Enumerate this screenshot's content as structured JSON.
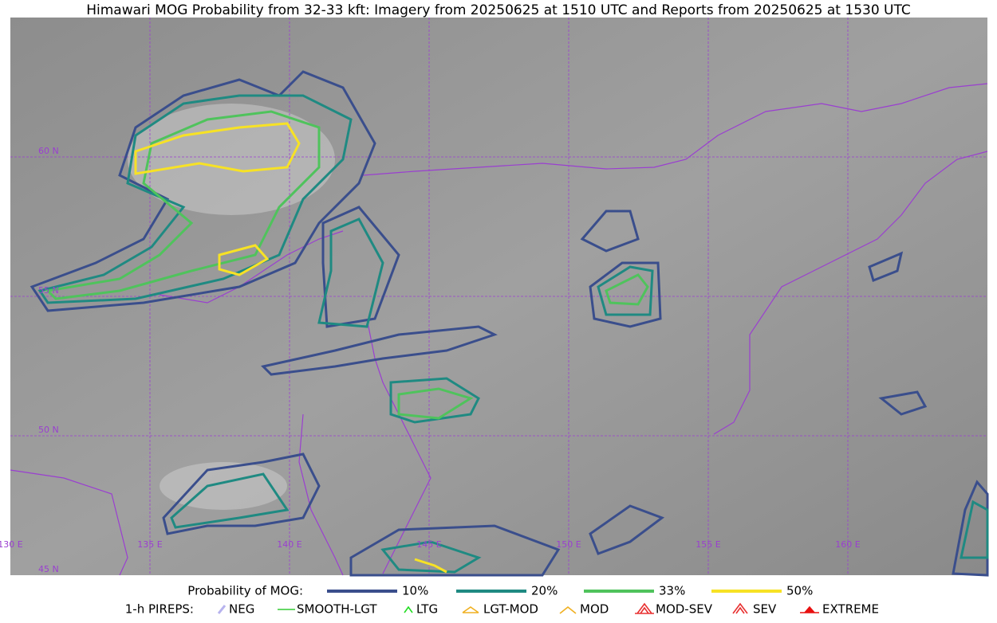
{
  "title": "Himawari MOG Probability from 32-33 kft: Imagery from 20250625 at 1510 UTC and Reports from 20250625 at 1530 UTC",
  "map": {
    "latitude_labels": [
      "60 N",
      "55 N",
      "50 N",
      "45 N"
    ],
    "longitude_labels": [
      "130 E",
      "135 E",
      "140 E",
      "145 E",
      "150 E",
      "155 E",
      "160 E"
    ]
  },
  "probability_legend": {
    "label": "Probability of MOG:",
    "items": [
      {
        "name": "10%",
        "color": "#3a4e8c"
      },
      {
        "name": "20%",
        "color": "#1f8a82"
      },
      {
        "name": "33%",
        "color": "#4fc35c"
      },
      {
        "name": "50%",
        "color": "#f7e225"
      }
    ]
  },
  "pirep_legend": {
    "label": "1-h PIREPS:",
    "items": [
      {
        "name": "NEG",
        "color": "#b7b3ee"
      },
      {
        "name": "SMOOTH-LGT",
        "color": "#33cc33"
      },
      {
        "name": "LTG",
        "color": "#22dd22"
      },
      {
        "name": "LGT-MOD",
        "color": "#f0b020"
      },
      {
        "name": "MOD",
        "color": "#f0b020"
      },
      {
        "name": "MOD-SEV",
        "color": "#e83030"
      },
      {
        "name": "SEV",
        "color": "#e83030"
      },
      {
        "name": "EXTREME",
        "color": "#e81010"
      }
    ]
  }
}
